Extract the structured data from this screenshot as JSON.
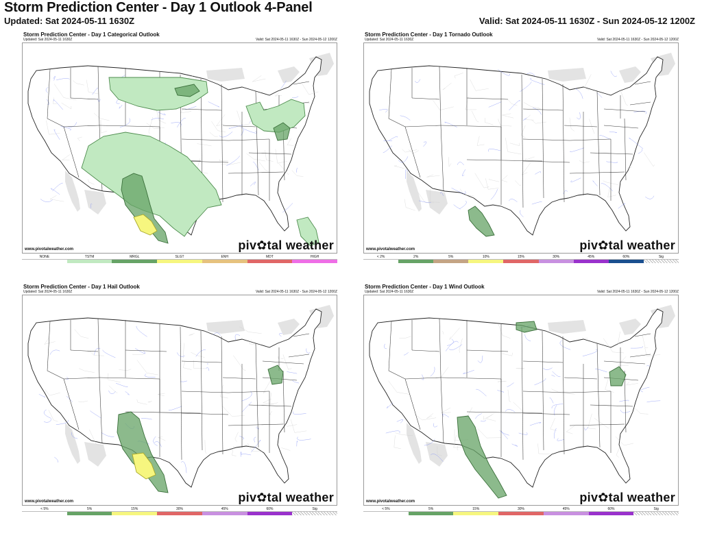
{
  "header": {
    "title": "Storm Prediction Center - Day 1 Outlook 4-Panel",
    "updated": "Updated: Sat 2024-05-11 1630Z",
    "valid": "Valid: Sat 2024-05-11 1630Z - Sun 2024-05-12 1200Z"
  },
  "common": {
    "updated": "Updated: Sat 2024-05-11 1630Z",
    "valid": "Valid: Sat 2024-05-11 1630Z - Sun 2024-05-12 1200Z",
    "url": "www.pivotalweather.com",
    "brand": "piv✿tal weather"
  },
  "panels": [
    {
      "title": "Storm Prediction Center - Day 1 Categorical Outlook",
      "legend": [
        {
          "label": "NONE",
          "color": "#ffffff"
        },
        {
          "label": "TSTM",
          "color": "#c1e9c1"
        },
        {
          "label": "MRGL",
          "color": "#66a366"
        },
        {
          "label": "SLGT",
          "color": "#f6f67f"
        },
        {
          "label": "ENH",
          "color": "#e6c27e"
        },
        {
          "label": "MDT",
          "color": "#e06666"
        },
        {
          "label": "HIGH",
          "color": "#ee6ee6"
        }
      ]
    },
    {
      "title": "Storm Prediction Center - Day 1 Tornado Outlook",
      "legend": [
        {
          "label": "< 2%",
          "color": "#ffffff"
        },
        {
          "label": "2%",
          "color": "#66a366"
        },
        {
          "label": "5%",
          "color": "#c4a484"
        },
        {
          "label": "10%",
          "color": "#f6f67f"
        },
        {
          "label": "15%",
          "color": "#e06666"
        },
        {
          "label": "30%",
          "color": "#c890e0"
        },
        {
          "label": "45%",
          "color": "#9932cc"
        },
        {
          "label": "60%",
          "color": "#1a4f8f"
        },
        {
          "label": "Sig",
          "color": "hatch"
        }
      ]
    },
    {
      "title": "Storm Prediction Center - Day 1 Hail Outlook",
      "legend": [
        {
          "label": "< 5%",
          "color": "#ffffff"
        },
        {
          "label": "5%",
          "color": "#66a366"
        },
        {
          "label": "15%",
          "color": "#f6f67f"
        },
        {
          "label": "30%",
          "color": "#e06666"
        },
        {
          "label": "45%",
          "color": "#c890e0"
        },
        {
          "label": "60%",
          "color": "#9932cc"
        },
        {
          "label": "Sig",
          "color": "hatch"
        }
      ]
    },
    {
      "title": "Storm Prediction Center - Day 1 Wind Outlook",
      "legend": [
        {
          "label": "< 5%",
          "color": "#ffffff"
        },
        {
          "label": "5%",
          "color": "#66a366"
        },
        {
          "label": "15%",
          "color": "#f6f67f"
        },
        {
          "label": "30%",
          "color": "#e06666"
        },
        {
          "label": "45%",
          "color": "#c890e0"
        },
        {
          "label": "60%",
          "color": "#9932cc"
        },
        {
          "label": "Sig",
          "color": "hatch"
        }
      ]
    }
  ]
}
